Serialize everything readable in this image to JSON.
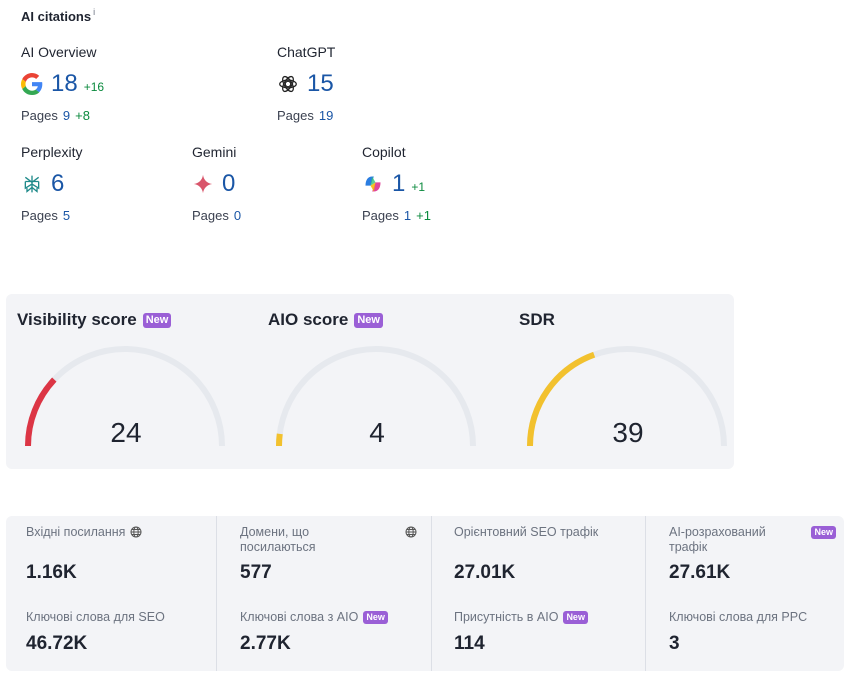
{
  "citations": {
    "title": "AI citations",
    "info_mark": "i",
    "pages_label": "Pages",
    "items": [
      {
        "name": "AI Overview",
        "value": "18",
        "delta": "+16",
        "pages": "9",
        "pages_delta": "+8",
        "icon": "google-icon"
      },
      {
        "name": "ChatGPT",
        "value": "15",
        "delta": "",
        "pages": "19",
        "pages_delta": "",
        "icon": "chatgpt-icon"
      },
      {
        "name": "Perplexity",
        "value": "6",
        "delta": "",
        "pages": "5",
        "pages_delta": "",
        "icon": "perplexity-icon"
      },
      {
        "name": "Gemini",
        "value": "0",
        "delta": "",
        "pages": "0",
        "pages_delta": "",
        "icon": "gemini-icon"
      },
      {
        "name": "Copilot",
        "value": "1",
        "delta": "+1",
        "pages": "1",
        "pages_delta": "+1",
        "icon": "copilot-icon"
      }
    ]
  },
  "scores": [
    {
      "title": "Visibility score",
      "badge": "New",
      "value": "24",
      "fraction": 0.24,
      "color": "#dc3545"
    },
    {
      "title": "AIO score",
      "badge": "New",
      "value": "4",
      "fraction": 0.04,
      "color": "#f2c12e"
    },
    {
      "title": "SDR",
      "badge": "",
      "value": "39",
      "fraction": 0.39,
      "color": "#f2c12e"
    }
  ],
  "metrics": [
    [
      {
        "label": "Вхідні посилання",
        "value": "1.16K",
        "globe": true,
        "badge": ""
      },
      {
        "label": "Ключові слова для SEO",
        "value": "46.72K",
        "globe": false,
        "badge": ""
      }
    ],
    [
      {
        "label": "Домени, що посилаються",
        "value": "577",
        "globe": true,
        "badge": ""
      },
      {
        "label": "Ключові слова з AIO",
        "value": "2.77K",
        "globe": false,
        "badge": "New"
      }
    ],
    [
      {
        "label": "Орієнтовний SEO трафік",
        "value": "27.01K",
        "globe": false,
        "badge": ""
      },
      {
        "label": "Присутність в AIO",
        "value": "114",
        "globe": false,
        "badge": "New"
      }
    ],
    [
      {
        "label": "AI-розрахований трафік",
        "value": "27.61K",
        "globe": false,
        "badge": "New"
      },
      {
        "label": "Ключові слова для PPC",
        "value": "3",
        "globe": false,
        "badge": ""
      }
    ]
  ],
  "colors": {
    "link_blue": "#1a56a6",
    "delta_green": "#0b8a3e",
    "badge_purple": "#9a5fd6",
    "gauge_track": "#e6e9ee"
  }
}
